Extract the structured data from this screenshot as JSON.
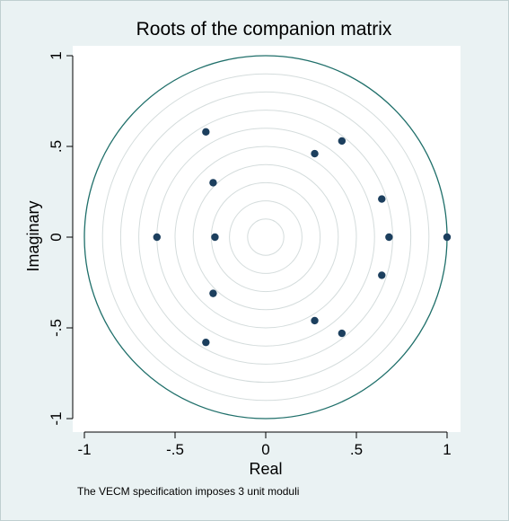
{
  "chart_data": {
    "type": "scatter",
    "title": "Roots of the companion matrix",
    "xlabel": "Real",
    "ylabel": "Imaginary",
    "note": "The VECM specification imposes 3 unit moduli",
    "xlim": [
      -1,
      1
    ],
    "ylim": [
      -1,
      1
    ],
    "x_ticks": [
      {
        "value": -1,
        "label": "-1"
      },
      {
        "value": -0.5,
        "label": "-.5"
      },
      {
        "value": 0,
        "label": "0"
      },
      {
        "value": 0.5,
        "label": ".5"
      },
      {
        "value": 1,
        "label": "1"
      }
    ],
    "y_ticks": [
      {
        "value": -1,
        "label": "-1"
      },
      {
        "value": -0.5,
        "label": "-.5"
      },
      {
        "value": 0,
        "label": "0"
      },
      {
        "value": 0.5,
        "label": ".5"
      },
      {
        "value": 1,
        "label": "1"
      }
    ],
    "unit_circle": true,
    "concentric_circles": [
      0.1,
      0.2,
      0.3,
      0.4,
      0.5,
      0.6,
      0.7,
      0.8,
      0.9
    ],
    "points": [
      {
        "x": 1.0,
        "y": 0.0
      },
      {
        "x": 0.68,
        "y": 0.0
      },
      {
        "x": 0.64,
        "y": 0.21
      },
      {
        "x": 0.64,
        "y": -0.21
      },
      {
        "x": 0.42,
        "y": 0.53
      },
      {
        "x": 0.42,
        "y": -0.53
      },
      {
        "x": 0.27,
        "y": 0.46
      },
      {
        "x": 0.27,
        "y": -0.46
      },
      {
        "x": -0.28,
        "y": 0.0
      },
      {
        "x": -0.29,
        "y": 0.3
      },
      {
        "x": -0.29,
        "y": -0.31
      },
      {
        "x": -0.33,
        "y": 0.58
      },
      {
        "x": -0.33,
        "y": -0.58
      },
      {
        "x": -0.6,
        "y": 0.0
      }
    ],
    "colors": {
      "background": "#eaf2f3",
      "plot_bg": "#ffffff",
      "unit_circle": "#1f6f6a",
      "grid_circles": "#d4dcdc",
      "points": "#1c3f5e"
    }
  }
}
